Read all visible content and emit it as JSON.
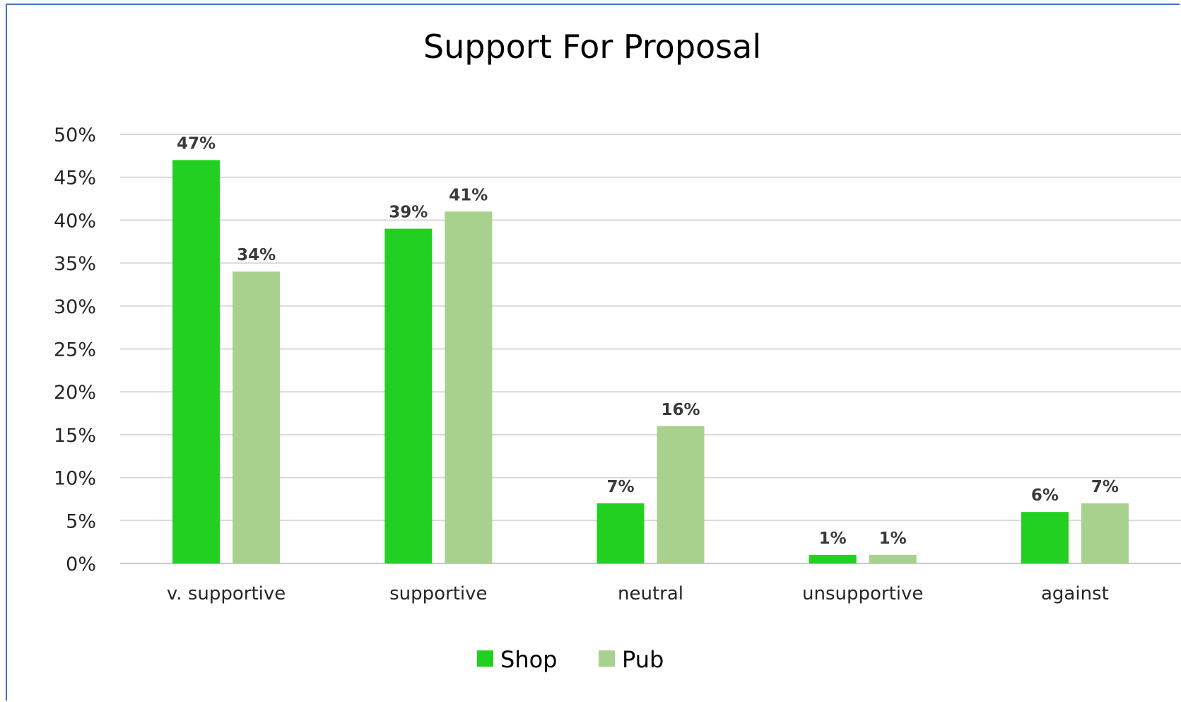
{
  "chart_data": {
    "type": "bar",
    "title": "Support For Proposal",
    "categories": [
      "v. supportive",
      "supportive",
      "neutral",
      "unsupportive",
      "against"
    ],
    "series": [
      {
        "name": "Shop",
        "color": "#22d022",
        "values": [
          47,
          39,
          7,
          1,
          6
        ],
        "labels": [
          "47%",
          "39%",
          "7%",
          "1%",
          "6%"
        ]
      },
      {
        "name": "Pub",
        "color": "#a9d18e",
        "values": [
          34,
          41,
          16,
          1,
          7
        ],
        "labels": [
          "34%",
          "41%",
          "16%",
          "1%",
          "7%"
        ]
      }
    ],
    "y_ticks": [
      "0%",
      "5%",
      "10%",
      "15%",
      "20%",
      "25%",
      "30%",
      "35%",
      "40%",
      "45%",
      "50%"
    ],
    "ylim": [
      0,
      50
    ],
    "grid": true,
    "legend": "bottom-center"
  }
}
